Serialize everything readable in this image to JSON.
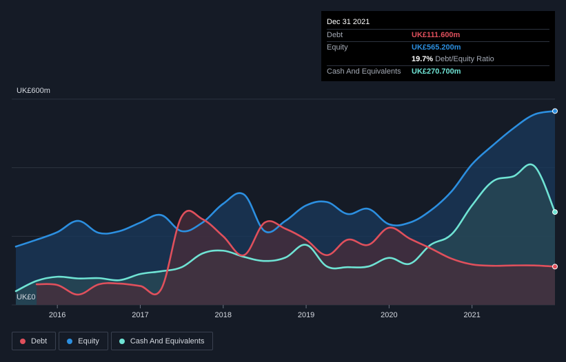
{
  "chart_data": {
    "type": "area",
    "y_unit_prefix": "UK£",
    "y_top_label": "UK£600m",
    "y_zero_label": "UK£0",
    "ylim": [
      0,
      600
    ],
    "xlim": [
      2015.45,
      2022.0
    ],
    "x_ticks": [
      {
        "x": 2016,
        "label": "2016"
      },
      {
        "x": 2017,
        "label": "2017"
      },
      {
        "x": 2018,
        "label": "2018"
      },
      {
        "x": 2019,
        "label": "2019"
      },
      {
        "x": 2020,
        "label": "2020"
      },
      {
        "x": 2021,
        "label": "2021"
      }
    ],
    "grid": true,
    "series": [
      {
        "name": "Equity",
        "color": "#2c8fe0",
        "fill": "#1a3a5c",
        "points": [
          [
            2015.5,
            170
          ],
          [
            2015.75,
            190
          ],
          [
            2016.0,
            212
          ],
          [
            2016.25,
            245
          ],
          [
            2016.5,
            210
          ],
          [
            2016.75,
            215
          ],
          [
            2017.0,
            240
          ],
          [
            2017.25,
            262
          ],
          [
            2017.5,
            215
          ],
          [
            2017.75,
            240
          ],
          [
            2018.0,
            295
          ],
          [
            2018.25,
            322
          ],
          [
            2018.5,
            215
          ],
          [
            2018.75,
            245
          ],
          [
            2019.0,
            290
          ],
          [
            2019.25,
            300
          ],
          [
            2019.5,
            265
          ],
          [
            2019.75,
            280
          ],
          [
            2020.0,
            235
          ],
          [
            2020.25,
            240
          ],
          [
            2020.5,
            275
          ],
          [
            2020.75,
            330
          ],
          [
            2021.0,
            410
          ],
          [
            2021.25,
            465
          ],
          [
            2021.5,
            515
          ],
          [
            2021.75,
            555
          ],
          [
            2022.0,
            565.2
          ]
        ]
      },
      {
        "name": "Cash And Equivalents",
        "color": "#6fe3d4",
        "fill": "#284a56",
        "points": [
          [
            2015.5,
            40
          ],
          [
            2015.75,
            70
          ],
          [
            2016.0,
            82
          ],
          [
            2016.25,
            77
          ],
          [
            2016.5,
            78
          ],
          [
            2016.75,
            72
          ],
          [
            2017.0,
            90
          ],
          [
            2017.25,
            98
          ],
          [
            2017.5,
            110
          ],
          [
            2017.75,
            150
          ],
          [
            2018.0,
            158
          ],
          [
            2018.25,
            140
          ],
          [
            2018.5,
            128
          ],
          [
            2018.75,
            138
          ],
          [
            2019.0,
            175
          ],
          [
            2019.25,
            112
          ],
          [
            2019.5,
            110
          ],
          [
            2019.75,
            112
          ],
          [
            2020.0,
            137
          ],
          [
            2020.25,
            120
          ],
          [
            2020.5,
            175
          ],
          [
            2020.75,
            205
          ],
          [
            2021.0,
            290
          ],
          [
            2021.25,
            360
          ],
          [
            2021.5,
            375
          ],
          [
            2021.75,
            405
          ],
          [
            2022.0,
            270.7
          ]
        ]
      },
      {
        "name": "Debt",
        "color": "#e0505c",
        "fill": "#4a2c3a",
        "points": [
          [
            2015.75,
            60
          ],
          [
            2016.0,
            58
          ],
          [
            2016.25,
            30
          ],
          [
            2016.5,
            60
          ],
          [
            2016.75,
            62
          ],
          [
            2017.0,
            55
          ],
          [
            2017.25,
            45
          ],
          [
            2017.5,
            258
          ],
          [
            2017.75,
            250
          ],
          [
            2018.0,
            200
          ],
          [
            2018.25,
            145
          ],
          [
            2018.5,
            240
          ],
          [
            2018.75,
            222
          ],
          [
            2019.0,
            190
          ],
          [
            2019.25,
            145
          ],
          [
            2019.5,
            190
          ],
          [
            2019.75,
            175
          ],
          [
            2020.0,
            225
          ],
          [
            2020.25,
            193
          ],
          [
            2020.5,
            165
          ],
          [
            2020.75,
            135
          ],
          [
            2021.0,
            118
          ],
          [
            2021.25,
            114
          ],
          [
            2021.5,
            115
          ],
          [
            2021.75,
            115
          ],
          [
            2022.0,
            111.6
          ]
        ]
      }
    ]
  },
  "tooltip": {
    "date": "Dec 31 2021",
    "debt_label": "Debt",
    "debt_value": "UK£111.600m",
    "equity_label": "Equity",
    "equity_value": "UK£565.200m",
    "ratio_value": "19.7%",
    "ratio_label": "Debt/Equity Ratio",
    "cash_label": "Cash And Equivalents",
    "cash_value": "UK£270.700m"
  },
  "legend": {
    "debt": "Debt",
    "equity": "Equity",
    "cash": "Cash And Equivalents"
  },
  "colors": {
    "debt": "#e0505c",
    "equity": "#2c8fe0",
    "cash": "#6fe3d4",
    "background": "#151b26"
  }
}
